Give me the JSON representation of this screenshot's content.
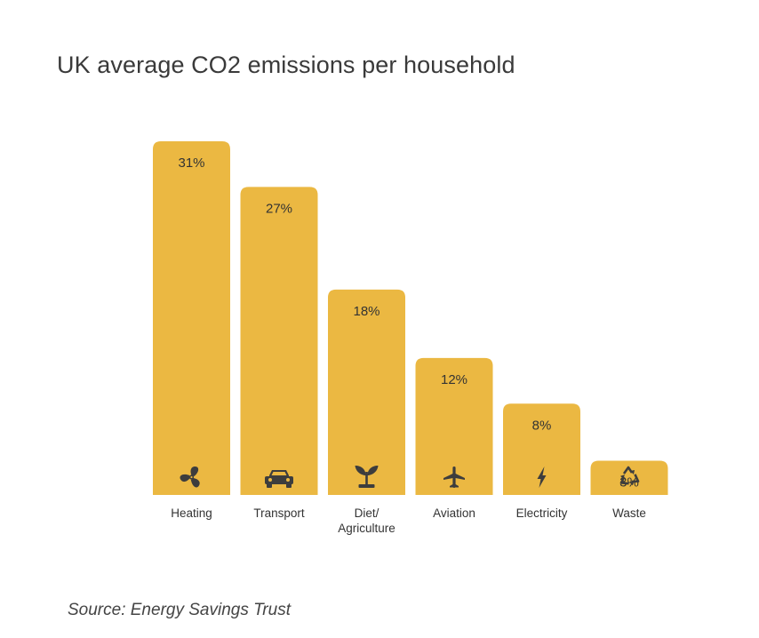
{
  "chart_data": {
    "type": "bar",
    "title": "UK average CO2 emissions per household",
    "categories": [
      "Heating",
      "Transport",
      "Diet/\nAgriculture",
      "Aviation",
      "Electricity",
      "Waste"
    ],
    "values": [
      31,
      27,
      18,
      12,
      8,
      3
    ],
    "value_labels": [
      "31%",
      "27%",
      "18%",
      "12%",
      "8%",
      "3%"
    ],
    "icons": [
      "fan-icon",
      "car-icon",
      "plant-icon",
      "airplane-icon",
      "lightning-icon",
      "recycle-icon"
    ],
    "unit": "%",
    "ylim": [
      0,
      31
    ],
    "grid": false,
    "bar_color": "#ebb842",
    "icon_color": "#3d3d3d",
    "source": "Source: Energy Savings Trust"
  }
}
